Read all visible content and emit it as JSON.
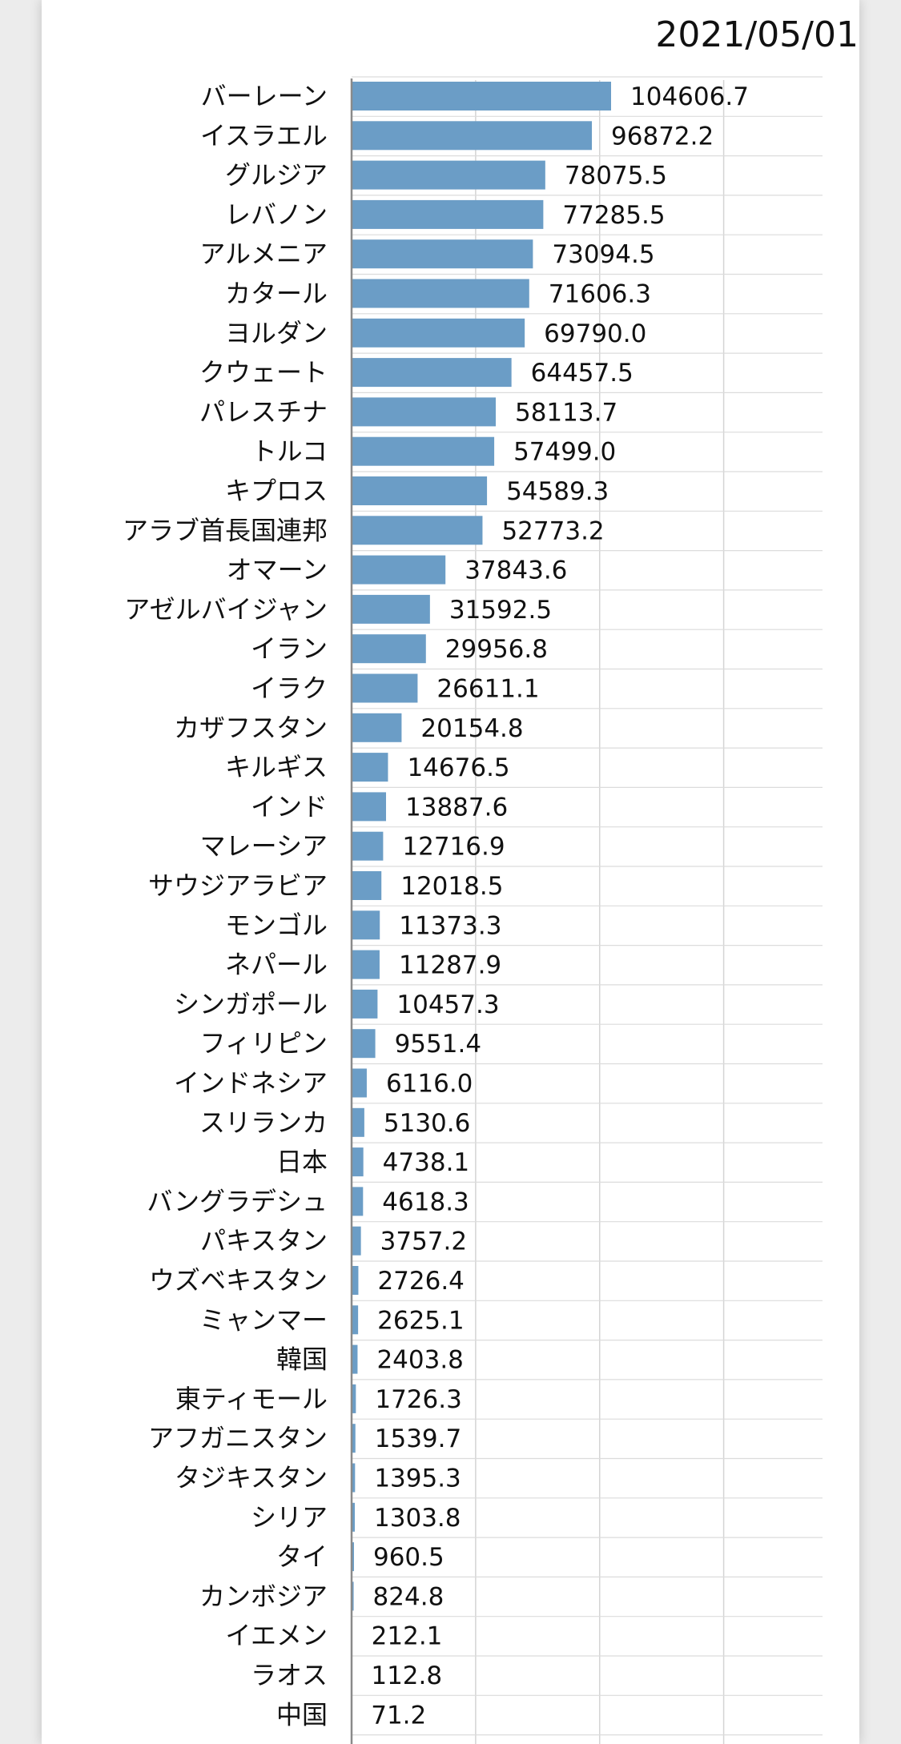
{
  "date_label": "2021/05/01",
  "chart_data": {
    "type": "bar",
    "orientation": "horizontal",
    "xlim": [
      0,
      150000
    ],
    "grid": true,
    "categories": [
      "バーレーン",
      "イスラエル",
      "グルジア",
      "レバノン",
      "アルメニア",
      "カタール",
      "ヨルダン",
      "クウェート",
      "パレスチナ",
      "トルコ",
      "キプロス",
      "アラブ首長国連邦",
      "オマーン",
      "アゼルバイジャン",
      "イラン",
      "イラク",
      "カザフスタン",
      "キルギス",
      "インド",
      "マレーシア",
      "サウジアラビア",
      "モンゴル",
      "ネパール",
      "シンガポール",
      "フィリピン",
      "インドネシア",
      "スリランカ",
      "日本",
      "バングラデシュ",
      "パキスタン",
      "ウズベキスタン",
      "ミャンマー",
      "韓国",
      "東ティモール",
      "アフガニスタン",
      "タジキスタン",
      "シリア",
      "タイ",
      "カンボジア",
      "イエメン",
      "ラオス",
      "中国"
    ],
    "values": [
      104606.7,
      96872.2,
      78075.5,
      77285.5,
      73094.5,
      71606.3,
      69790.0,
      64457.5,
      58113.7,
      57499.0,
      54589.3,
      52773.2,
      37843.6,
      31592.5,
      29956.8,
      26611.1,
      20154.8,
      14676.5,
      13887.6,
      12716.9,
      12018.5,
      11373.3,
      11287.9,
      10457.3,
      9551.4,
      6116.0,
      5130.6,
      4738.1,
      4618.3,
      3757.2,
      2726.4,
      2625.1,
      2403.8,
      1726.3,
      1539.7,
      1395.3,
      1303.8,
      960.5,
      824.8,
      212.1,
      112.8,
      71.2
    ],
    "value_labels": [
      "104606.7",
      "96872.2",
      "78075.5",
      "77285.5",
      "73094.5",
      "71606.3",
      "69790.0",
      "64457.5",
      "58113.7",
      "57499.0",
      "54589.3",
      "52773.2",
      "37843.6",
      "31592.5",
      "29956.8",
      "26611.1",
      "20154.8",
      "14676.5",
      "13887.6",
      "12716.9",
      "12018.5",
      "11373.3",
      "11287.9",
      "10457.3",
      "9551.4",
      "6116.0",
      "5130.6",
      "4738.1",
      "4618.3",
      "3757.2",
      "2726.4",
      "2625.1",
      "2403.8",
      "1726.3",
      "1539.7",
      "1395.3",
      "1303.8",
      "960.5",
      "824.8",
      "212.1",
      "112.8",
      "71.2"
    ],
    "bar_color": "#6b9dc6"
  }
}
